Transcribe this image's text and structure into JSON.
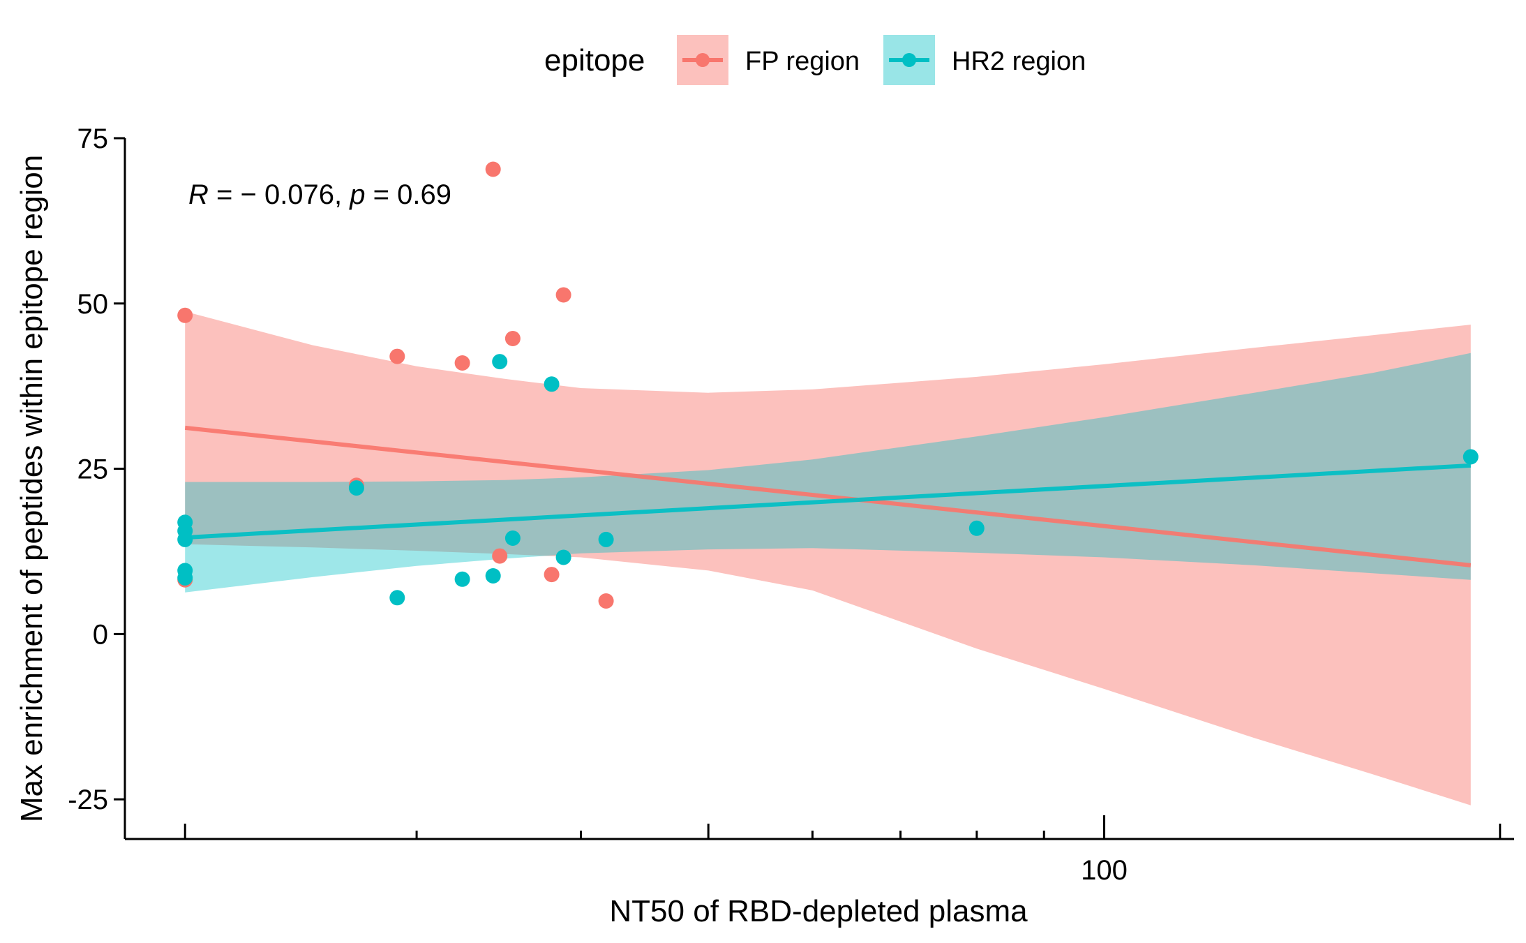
{
  "chart_data": {
    "type": "scatter",
    "xlabel": "NT50 of RBD-depleted plasma",
    "ylabel": "Max enrichment of peptides within epitope region",
    "xscale": "log10",
    "xlim": [
      18,
      205
    ],
    "ylim": [
      -31,
      75
    ],
    "y_ticks": [
      -25,
      0,
      25,
      50,
      75
    ],
    "y_tick_labels": [
      "-25",
      "0",
      "25",
      "50",
      "75"
    ],
    "x_major_ticks": [
      100
    ],
    "x_major_tick_labels": [
      "100"
    ],
    "x_minor_ticks": [
      20,
      30,
      40,
      50,
      60,
      70,
      80,
      90,
      200
    ],
    "legend": {
      "title": "epitope",
      "position": "top",
      "entries": [
        "FP region",
        "HR2 region"
      ]
    },
    "annotation": {
      "r_label": "R",
      "r_value": " = − 0.076, ",
      "p_label": "p",
      "p_value": " = 0.69",
      "x": 20,
      "y": 66
    },
    "series": [
      {
        "name": "FP region",
        "color": "#F8766D",
        "ribbon_color": "#F8766D",
        "points": [
          [
            20,
            48.2
          ],
          [
            20,
            8.2
          ],
          [
            27,
            22.5
          ],
          [
            29,
            42
          ],
          [
            32.5,
            41
          ],
          [
            34.3,
            70.3
          ],
          [
            34.7,
            11.8
          ],
          [
            35.5,
            44.7
          ],
          [
            38,
            9
          ],
          [
            38.8,
            51.3
          ],
          [
            41.8,
            5
          ]
        ],
        "fit": [
          [
            20,
            31.2
          ],
          [
            190,
            10.4
          ]
        ],
        "ci_x": [
          20,
          25,
          30,
          35,
          40,
          50,
          60,
          80,
          100,
          130,
          160,
          190
        ],
        "ci_upper": [
          48.8,
          43.7,
          40.5,
          38.6,
          37.2,
          36.5,
          37.0,
          38.9,
          40.8,
          43.3,
          45.2,
          46.8
        ],
        "ci_lower": [
          13.6,
          13.1,
          12.6,
          12.1,
          11.6,
          9.6,
          6.6,
          -2.2,
          -8.3,
          -15.7,
          -21.2,
          -25.9
        ]
      },
      {
        "name": "HR2 region",
        "color": "#00BFC4",
        "ribbon_color": "#00BFC4",
        "points": [
          [
            20,
            16.9
          ],
          [
            20,
            15.6
          ],
          [
            20,
            14.3
          ],
          [
            20,
            9.6
          ],
          [
            20,
            8.5
          ],
          [
            27,
            22.1
          ],
          [
            29,
            5.5
          ],
          [
            32.5,
            8.3
          ],
          [
            34.3,
            8.8
          ],
          [
            34.7,
            41.2
          ],
          [
            35.5,
            14.5
          ],
          [
            38,
            37.8
          ],
          [
            38.8,
            11.6
          ],
          [
            41.8,
            14.3
          ],
          [
            80,
            16
          ],
          [
            190,
            26.8
          ]
        ],
        "fit": [
          [
            20,
            14.6
          ],
          [
            190,
            25.5
          ]
        ],
        "ci_x": [
          20,
          25,
          30,
          35,
          40,
          50,
          60,
          80,
          100,
          130,
          160,
          190
        ],
        "ci_upper": [
          23.0,
          23.0,
          23.1,
          23.3,
          23.7,
          24.8,
          26.4,
          29.9,
          32.8,
          36.5,
          39.5,
          42.5
        ],
        "ci_lower": [
          6.3,
          8.6,
          10.3,
          11.4,
          12.2,
          12.8,
          13.0,
          12.3,
          11.6,
          10.4,
          9.2,
          8.2
        ]
      }
    ]
  }
}
